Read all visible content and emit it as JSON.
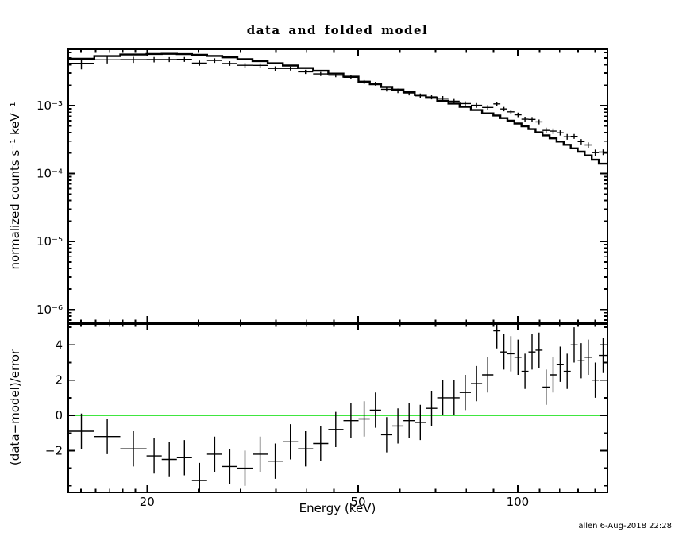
{
  "title": "data and folded model",
  "timestamp": "allen  6-Aug-2018 22:28",
  "axes": {
    "x_label": "Energy (keV)",
    "top_y_label": "normalized counts s⁻¹ keV⁻¹",
    "bottom_y_label": "(data−model)/error"
  },
  "colors": {
    "foreground": "#000000",
    "background": "#ffffff",
    "zero_line": "#00dd00"
  },
  "chart_data": [
    {
      "type": "line",
      "panel": "spectrum",
      "title": "data and folded model",
      "xlabel": "Energy (keV)",
      "ylabel": "normalized counts s⁻¹ keV⁻¹",
      "xscale": "log",
      "yscale": "log",
      "xlim": [
        14.2,
        147.7
      ],
      "ylim": [
        6.3e-07,
        0.00674
      ],
      "grid": false,
      "x_major_ticks": [
        20,
        50,
        100
      ],
      "x_tick_labels": [
        "20",
        "50",
        "100"
      ],
      "x_minor_ticks": [
        15,
        16,
        17,
        18,
        19,
        25,
        30,
        35,
        40,
        45,
        60,
        70,
        80,
        90,
        110,
        120,
        130,
        140
      ],
      "y_major_ticks": [
        0.001,
        0.0001,
        1e-05,
        1e-06
      ],
      "y_tick_labels": [
        "10⁻³",
        "10⁻⁴",
        "10⁻⁵",
        "10⁻⁶"
      ],
      "bin_edges": [
        14.2,
        15.9,
        17.8,
        19.95,
        21.31,
        22.76,
        24.3,
        25.95,
        27.72,
        29.6,
        31.61,
        33.76,
        36.06,
        38.51,
        41.13,
        43.92,
        46.91,
        50.1,
        52.61,
        55.24,
        58.0,
        60.9,
        63.94,
        67.14,
        70.5,
        74.02,
        77.72,
        81.61,
        85.69,
        89.97,
        92.76,
        95.64,
        98.6,
        101.66,
        104.81,
        108.06,
        111.41,
        114.86,
        118.42,
        122.09,
        125.88,
        129.78,
        133.8,
        137.95,
        142.23,
        147.7
      ],
      "series": [
        {
          "name": "data",
          "style": "cross-with-error-bars",
          "x": [
            15.03,
            16.82,
            18.84,
            20.62,
            22.02,
            23.52,
            25.11,
            26.82,
            28.64,
            30.59,
            32.67,
            34.89,
            37.26,
            39.79,
            42.5,
            45.38,
            48.47,
            51.34,
            53.91,
            56.6,
            59.43,
            62.4,
            65.52,
            68.8,
            72.24,
            75.85,
            79.64,
            83.62,
            87.8,
            91.35,
            94.19,
            97.11,
            100.12,
            103.22,
            106.42,
            109.72,
            113.12,
            116.62,
            120.24,
            123.96,
            127.8,
            131.77,
            135.85,
            140.07,
            144.93
          ],
          "y": [
            0.00419,
            0.00471,
            0.00474,
            0.00476,
            0.00477,
            0.00479,
            0.00422,
            0.00461,
            0.00417,
            0.00392,
            0.0039,
            0.00352,
            0.00352,
            0.00314,
            0.00292,
            0.0028,
            0.00261,
            0.00222,
            0.0021,
            0.00174,
            0.00165,
            0.00153,
            0.00139,
            0.00134,
            0.00128,
            0.00116,
            0.00107,
            0.00101,
            0.00094,
            0.00106,
            0.000891,
            0.00081,
            0.000734,
            0.000631,
            0.000628,
            0.000577,
            0.000432,
            0.000421,
            0.000398,
            0.000348,
            0.000353,
            0.000295,
            0.000264,
            0.000203,
            0.000207
          ],
          "yerr": [
            0.00078,
            0.00054,
            0.00048,
            0.00043,
            0.0004,
            0.00039,
            0.00037,
            0.00035,
            0.00033,
            0.0003,
            0.00028,
            0.00026,
            0.00024,
            0.00022,
            0.0002,
            0.00019,
            0.00017,
            0.00015,
            0.00014,
            0.00013,
            0.000124,
            0.000118,
            0.000112,
            0.000104,
            9.8e-05,
            9.2e-05,
            8.6e-05,
            8.1e-05,
            7.5e-05,
            7.2e-05,
            6.6e-05,
            6e-05,
            5.7e-05,
            5.4e-05,
            5e-05,
            4.7e-05,
            4.2e-05,
            4e-05,
            3.5e-05,
            3.3e-05,
            2.9e-05,
            2.7e-05,
            2.4e-05,
            2.2e-05,
            2e-05
          ]
        },
        {
          "name": "folded model",
          "style": "step-histogram",
          "y": [
            0.0049,
            0.00535,
            0.00565,
            0.00575,
            0.00578,
            0.00572,
            0.00558,
            0.00538,
            0.00512,
            0.00483,
            0.00452,
            0.0042,
            0.00388,
            0.00356,
            0.00325,
            0.00295,
            0.00266,
            0.00225,
            0.00206,
            0.00188,
            0.00172,
            0.00157,
            0.00143,
            0.0013,
            0.00118,
            0.00107,
            0.00096,
            0.00086,
            0.00077,
            0.000715,
            0.000655,
            0.0006,
            0.000545,
            0.000495,
            0.00045,
            0.000405,
            0.000365,
            0.00033,
            0.000295,
            0.000265,
            0.000235,
            0.00021,
            0.000185,
            0.00016,
            0.00014
          ]
        }
      ]
    },
    {
      "type": "scatter",
      "panel": "residuals",
      "xlabel": "Energy (keV)",
      "ylabel": "(data−model)/error",
      "xscale": "log",
      "xlim": [
        14.2,
        147.7
      ],
      "ylim": [
        -4.37,
        5.23
      ],
      "grid": false,
      "zero_line": 0,
      "y_major_ticks": [
        -2,
        0,
        2,
        4
      ],
      "y_tick_labels": [
        "−2",
        "0",
        "2",
        "4"
      ],
      "y_minor_ticks": [
        -4,
        -3,
        -1,
        1,
        3,
        5
      ],
      "series": [
        {
          "name": "(data-model)/error",
          "style": "cross-with-error-bars",
          "x": [
            15.03,
            16.82,
            18.84,
            20.62,
            22.02,
            23.52,
            25.11,
            26.82,
            28.64,
            30.59,
            32.67,
            34.89,
            37.26,
            39.79,
            42.5,
            45.38,
            48.47,
            51.34,
            53.91,
            56.6,
            59.43,
            62.4,
            65.52,
            68.8,
            72.24,
            75.85,
            79.64,
            83.62,
            87.8,
            91.35,
            94.19,
            97.11,
            100.12,
            103.22,
            106.42,
            109.72,
            113.12,
            116.62,
            120.24,
            123.96,
            127.8,
            131.77,
            135.85,
            140.07,
            144.93
          ],
          "y": [
            -0.9,
            -1.2,
            -1.9,
            -2.3,
            -2.5,
            -2.4,
            -3.7,
            -2.2,
            -2.9,
            -3.0,
            -2.2,
            -2.6,
            -1.5,
            -1.9,
            -1.6,
            -0.8,
            -0.3,
            -0.2,
            0.3,
            -1.1,
            -0.6,
            -0.3,
            -0.4,
            0.4,
            1.0,
            1.0,
            1.3,
            1.8,
            2.3,
            4.8,
            3.6,
            3.5,
            3.3,
            2.5,
            3.6,
            3.7,
            1.6,
            2.3,
            2.9,
            2.5,
            4.0,
            3.1,
            3.3,
            2.0,
            3.4
          ],
          "yerr_const": 1
        }
      ]
    }
  ]
}
